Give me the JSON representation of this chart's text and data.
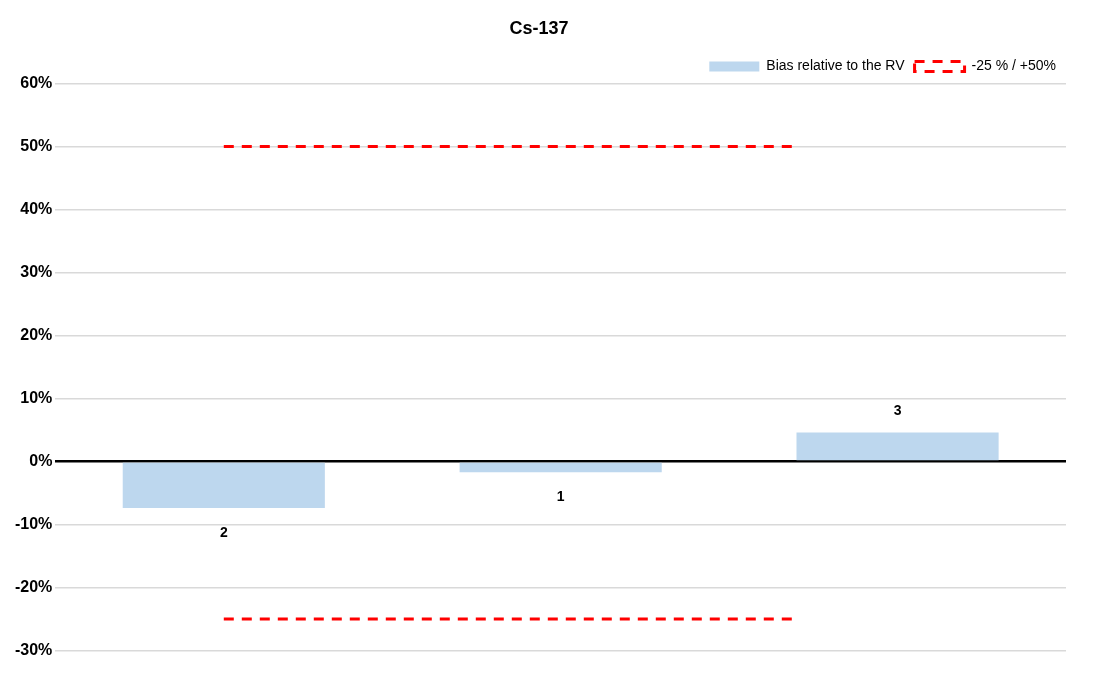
{
  "chart_data": {
    "type": "bar",
    "title": "Cs-137",
    "categories": [
      "2",
      "1",
      "3"
    ],
    "series": [
      {
        "name": "Bias relative to the RV",
        "color": "#bdd7ee",
        "values": [
          -7.4,
          -1.7,
          4.6
        ]
      }
    ],
    "ylim": [
      -30,
      60
    ],
    "yticks": [
      {
        "value": -30,
        "label": "-30%"
      },
      {
        "value": -20,
        "label": "-20%"
      },
      {
        "value": -10,
        "label": "-10%"
      },
      {
        "value": 0,
        "label": "0%"
      },
      {
        "value": 10,
        "label": "10%"
      },
      {
        "value": 20,
        "label": "20%"
      },
      {
        "value": 30,
        "label": "30%"
      },
      {
        "value": 40,
        "label": "40%"
      },
      {
        "value": 50,
        "label": "50%"
      },
      {
        "value": 60,
        "label": "60%"
      }
    ],
    "ref_lines": [
      {
        "axis": "y",
        "value": 50,
        "label": "-25 % / +50%",
        "color": "#ff0000",
        "line_style": "dashed"
      },
      {
        "axis": "y",
        "value": -25,
        "color": "#ff0000",
        "line_style": "dashed"
      }
    ],
    "grid": "y",
    "legend": "top right"
  }
}
